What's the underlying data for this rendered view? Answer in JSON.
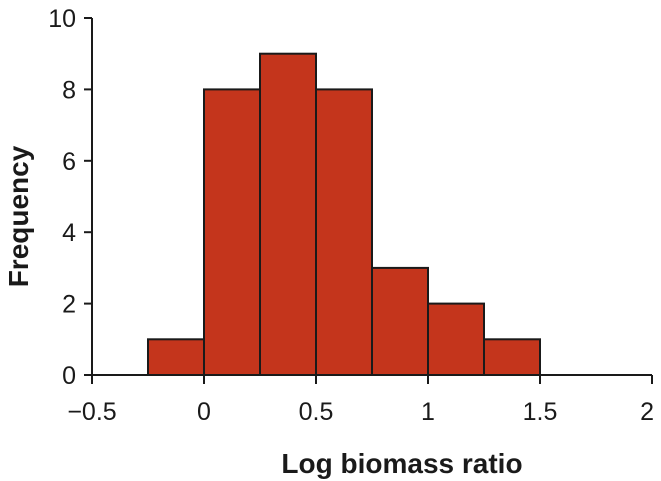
{
  "chart_data": {
    "type": "bar",
    "histogram": true,
    "title": "",
    "xlabel": "Log biomass ratio",
    "ylabel": "Frequency",
    "xlim": [
      -0.5,
      2
    ],
    "ylim": [
      0,
      10
    ],
    "x_ticks": [
      -0.5,
      0,
      0.5,
      1,
      1.5,
      2
    ],
    "x_tick_labels": [
      "−0.5",
      "0",
      "0.5",
      "1",
      "1.5",
      "2"
    ],
    "y_ticks": [
      0,
      2,
      4,
      6,
      8,
      10
    ],
    "y_tick_labels": [
      "0",
      "2",
      "4",
      "6",
      "8",
      "10"
    ],
    "bins": [
      {
        "start": -0.25,
        "end": 0.0,
        "count": 1
      },
      {
        "start": 0.0,
        "end": 0.25,
        "count": 8
      },
      {
        "start": 0.25,
        "end": 0.5,
        "count": 9
      },
      {
        "start": 0.5,
        "end": 0.75,
        "count": 8
      },
      {
        "start": 0.75,
        "end": 1.0,
        "count": 3
      },
      {
        "start": 1.0,
        "end": 1.25,
        "count": 2
      },
      {
        "start": 1.25,
        "end": 1.5,
        "count": 1
      }
    ],
    "bar_color": "#c4351c",
    "grid": false,
    "legend": "none"
  }
}
